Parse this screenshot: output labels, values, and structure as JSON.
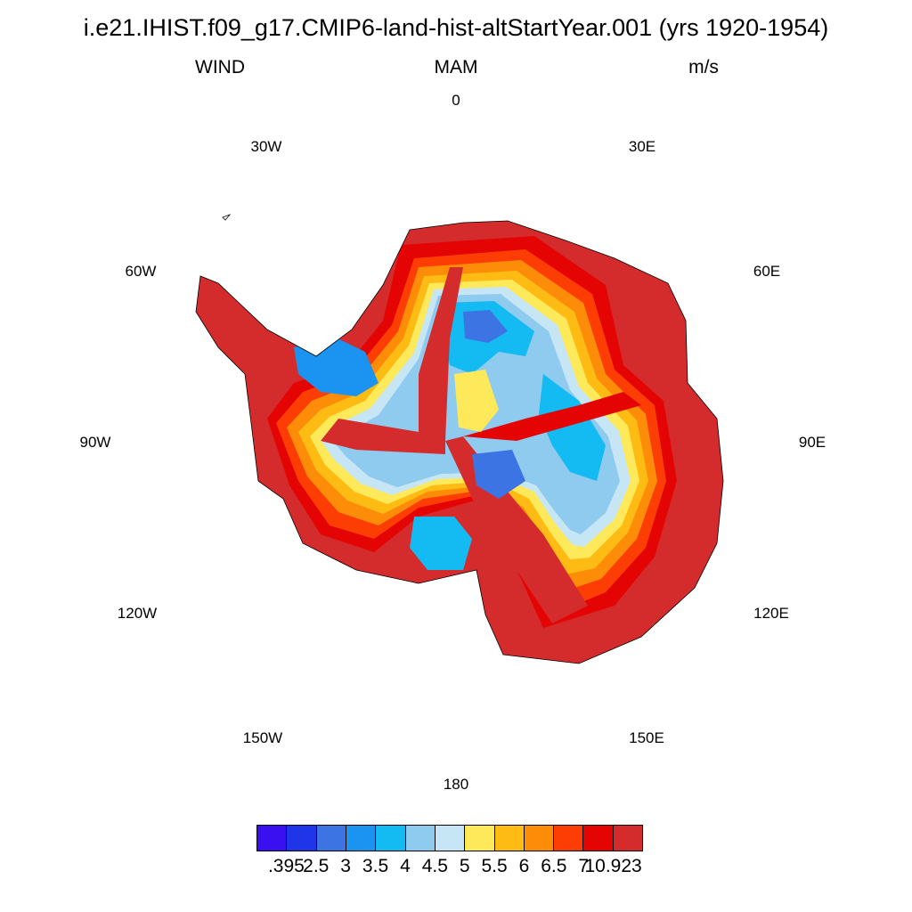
{
  "title": "i.e21.IHIST.f09_g17.CMIP6-land-hist-altStartYear.001 (yrs 1920-1954)",
  "subtitles": {
    "left": "WIND",
    "center": "MAM",
    "right": "m/s"
  },
  "longitude_labels": {
    "lon_0": "0",
    "lon_30e": "30E",
    "lon_60e": "60E",
    "lon_90e": "90E",
    "lon_120e": "120E",
    "lon_150e": "150E",
    "lon_180": "180",
    "lon_150w": "150W",
    "lon_120w": "120W",
    "lon_90w": "90W",
    "lon_60w": "60W",
    "lon_30w": "30W"
  },
  "colorbar": {
    "colors": [
      "#3a0ff0",
      "#1e35e8",
      "#3c74e4",
      "#1b93f0",
      "#14baf2",
      "#8ecbef",
      "#c6e5f5",
      "#fde95a",
      "#fdbb14",
      "#fd8c08",
      "#fc3e04",
      "#e40404",
      "#d42c2c"
    ],
    "labels": [
      ".395",
      "2.5",
      "3",
      "3.5",
      "4",
      "4.5",
      "5",
      "5.5",
      "6",
      "6.5",
      "7",
      "10.923"
    ]
  },
  "map": {
    "projection": "south polar stereographic",
    "region": "Antarctica",
    "variable": "WIND",
    "units": "m/s"
  }
}
